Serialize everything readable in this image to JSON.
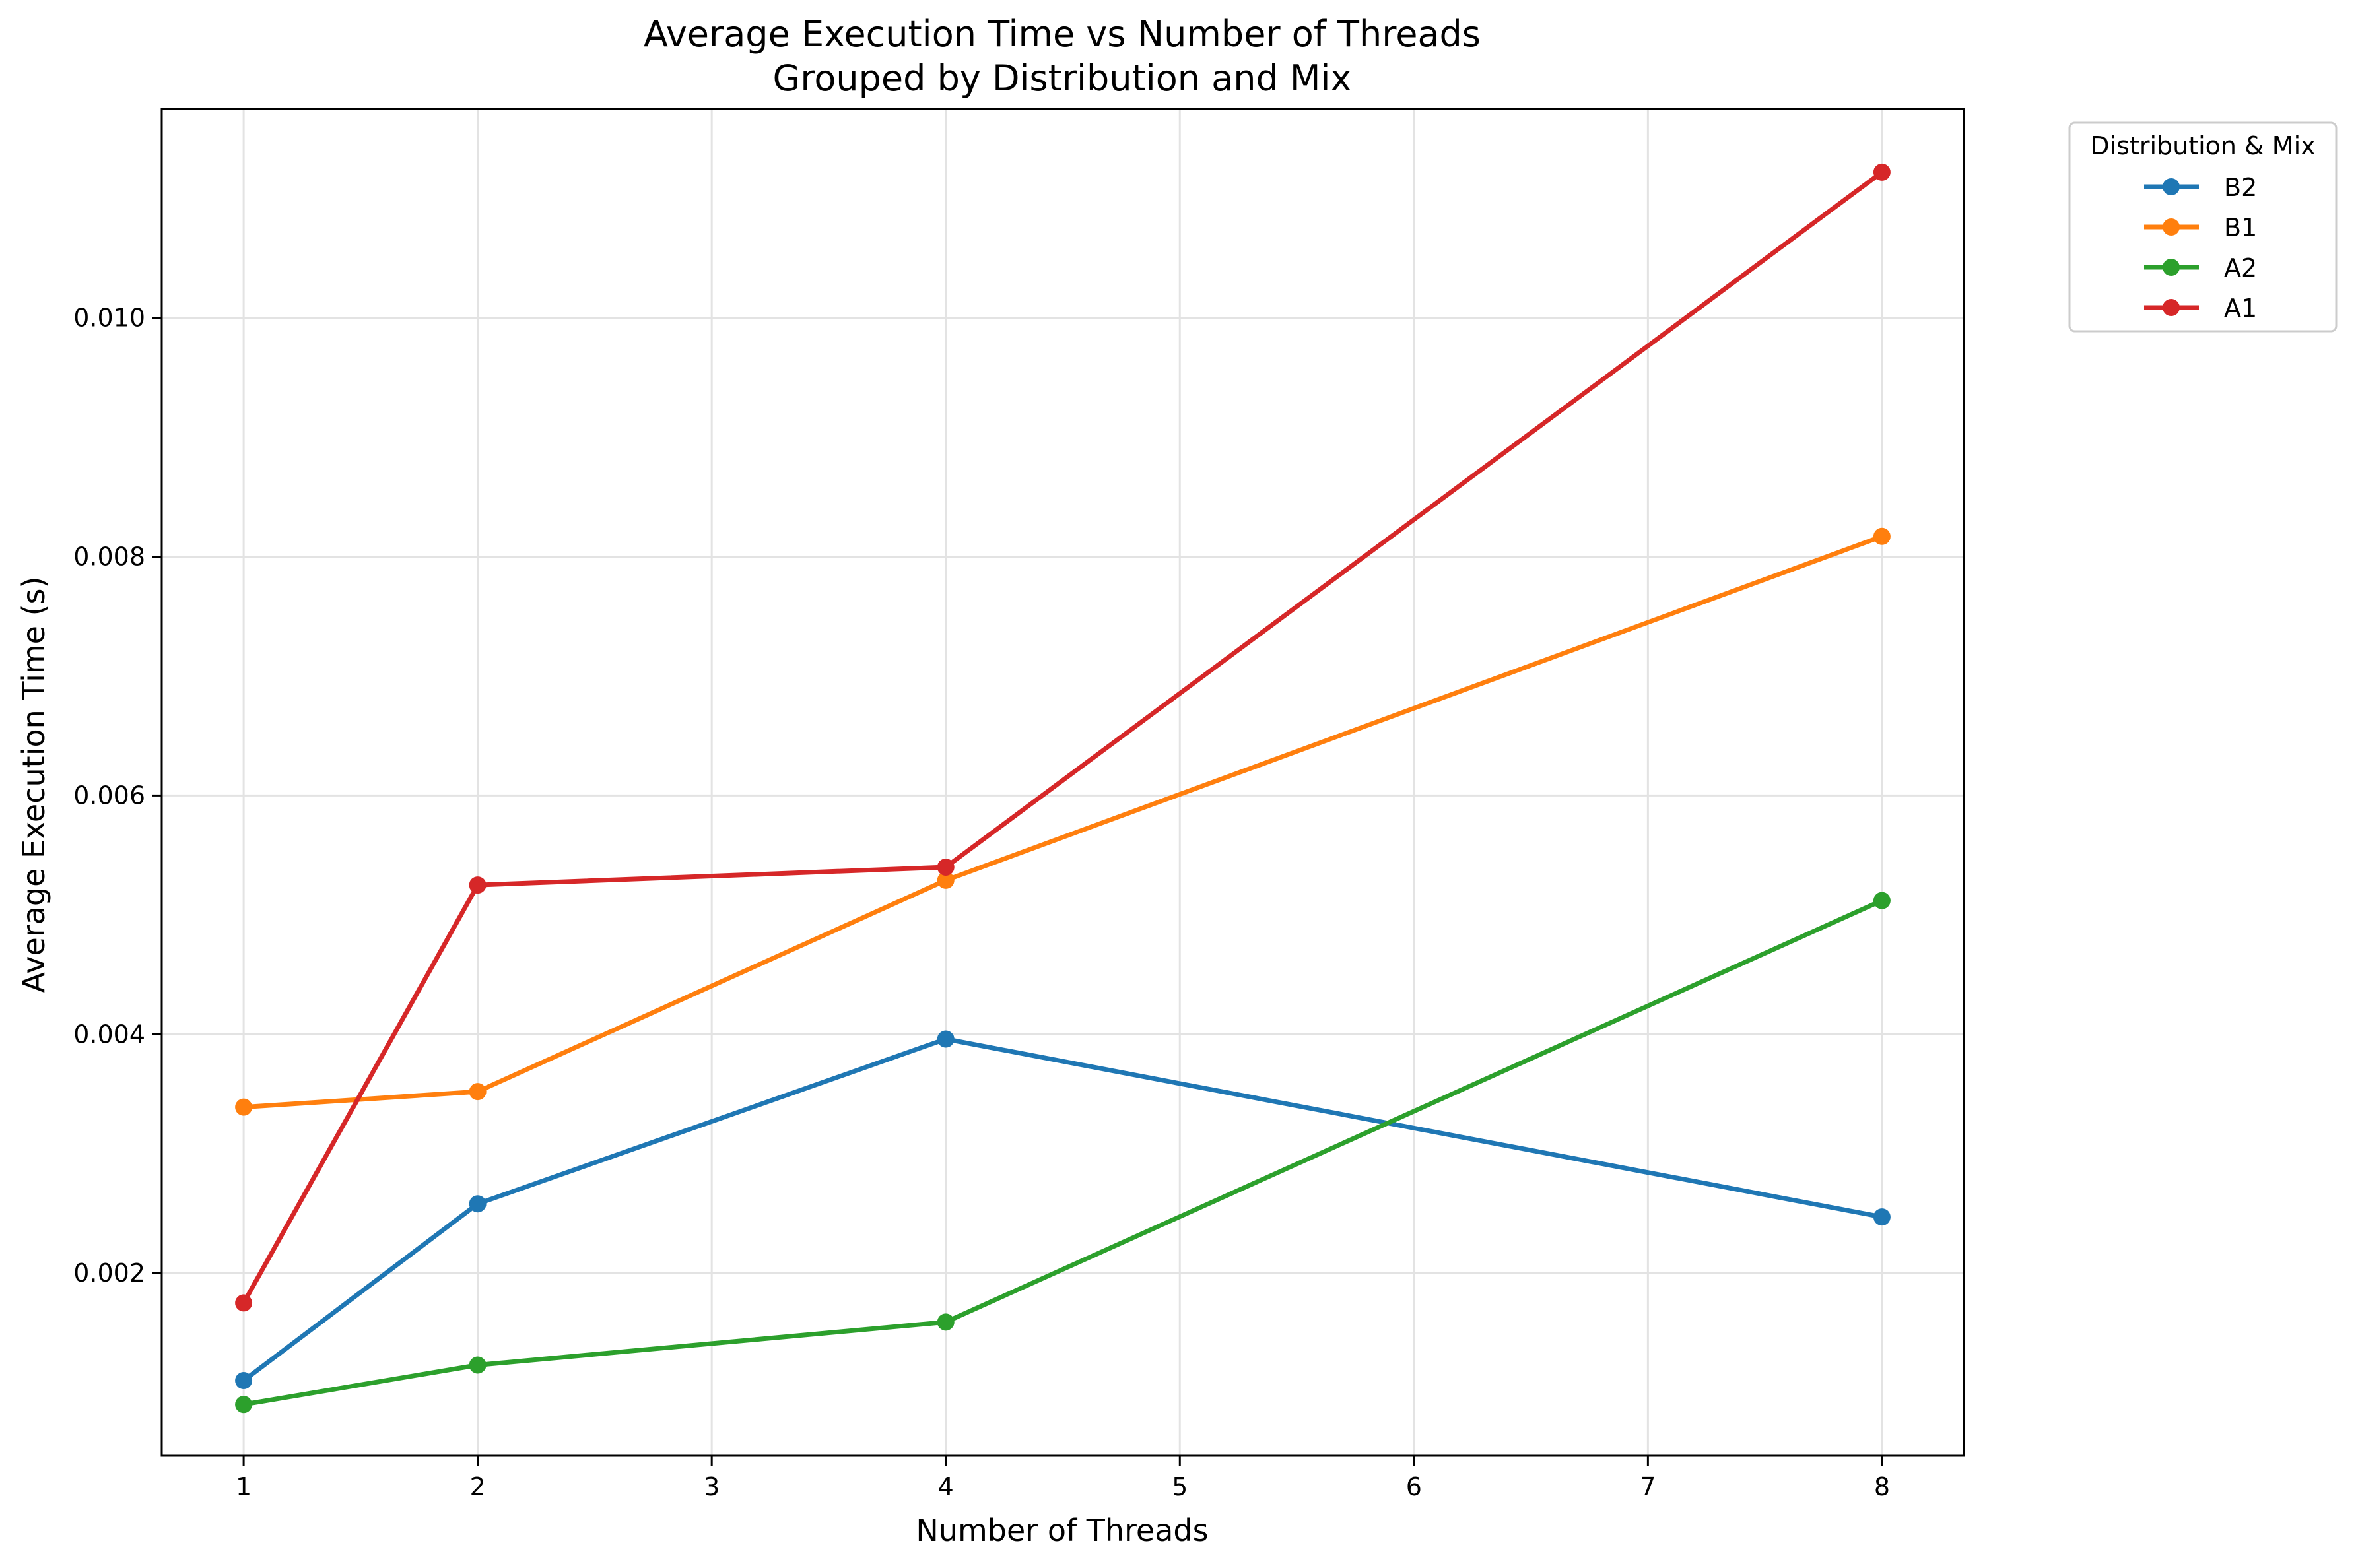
{
  "chart_data": {
    "type": "line",
    "title": "Average Execution Time vs Number of Threads",
    "subtitle": "Grouped by Distribution and Mix",
    "xlabel": "Number of Threads",
    "ylabel": "Average Execution Time (s)",
    "xlim": [
      0.65,
      8.35
    ],
    "ylim": [
      0.00047,
      0.01175
    ],
    "x_ticks": [
      1,
      2,
      3,
      4,
      5,
      6,
      7,
      8
    ],
    "x_tick_labels": [
      "1",
      "2",
      "3",
      "4",
      "5",
      "6",
      "7",
      "8"
    ],
    "y_ticks": [
      0.002,
      0.004,
      0.006,
      0.008,
      0.01
    ],
    "y_tick_labels": [
      "0.002",
      "0.004",
      "0.006",
      "0.008",
      "0.010"
    ],
    "grid": true,
    "legend": {
      "title": "Distribution & Mix",
      "placement": "outside-top-right"
    },
    "x": [
      1,
      2,
      4,
      8
    ],
    "series": [
      {
        "name": "B2",
        "color": "#1f77b4",
        "values": [
          0.0011,
          0.00258,
          0.00396,
          0.00247
        ]
      },
      {
        "name": "B1",
        "color": "#ff7f0e",
        "values": [
          0.00339,
          0.00352,
          0.00529,
          0.00817
        ]
      },
      {
        "name": "A2",
        "color": "#2ca02c",
        "values": [
          0.0009,
          0.00123,
          0.00159,
          0.00512
        ]
      },
      {
        "name": "A1",
        "color": "#d62728",
        "values": [
          0.00175,
          0.00525,
          0.0054,
          0.01122
        ]
      }
    ]
  }
}
